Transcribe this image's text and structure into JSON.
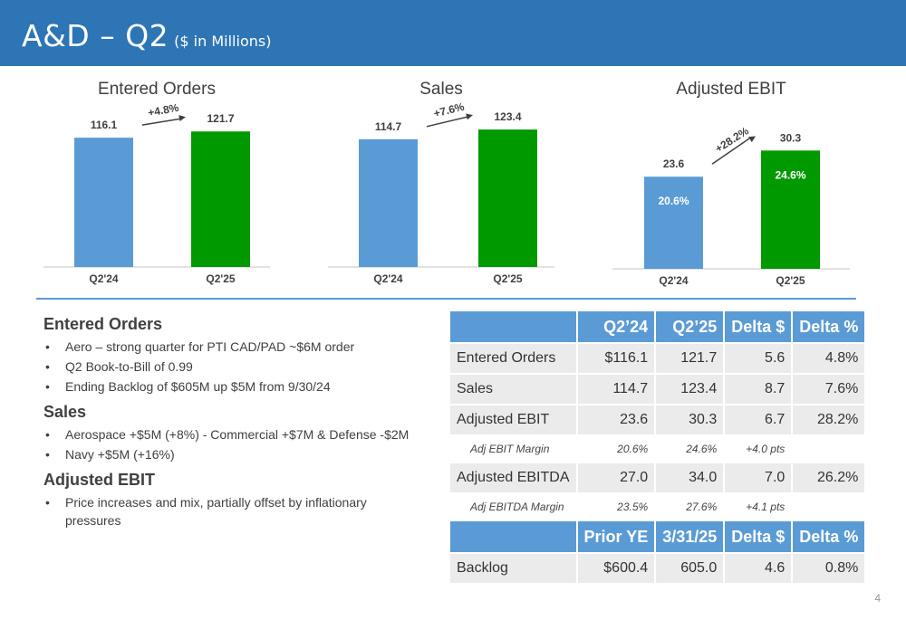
{
  "header": {
    "title": "A&D – Q2",
    "subtitle": "($ in Millions)"
  },
  "colors": {
    "header_bg": "#2e75b6",
    "q24_bar": "#5b9bd5",
    "q25_bar": "#009900",
    "axis": "#d9d9d9",
    "divider": "#5b9bd5",
    "table_header": "#5b9bd5",
    "table_row": "#ebebeb"
  },
  "chart_data": [
    {
      "type": "bar",
      "title": "Entered Orders",
      "categories": [
        "Q2'24",
        "Q2'25"
      ],
      "values": [
        116.1,
        121.7
      ],
      "data_labels": [
        "116.1",
        "121.7"
      ],
      "change_label": "+4.8%",
      "ylim": [
        0,
        130
      ]
    },
    {
      "type": "bar",
      "title": "Sales",
      "categories": [
        "Q2'24",
        "Q2'25"
      ],
      "values": [
        114.7,
        123.4
      ],
      "data_labels": [
        "114.7",
        "123.4"
      ],
      "change_label": "+7.6%",
      "ylim": [
        0,
        130
      ]
    },
    {
      "type": "bar",
      "title": "Adjusted EBIT",
      "categories": [
        "Q2'24",
        "Q2'25"
      ],
      "values": [
        23.6,
        30.3
      ],
      "data_labels": [
        "23.6",
        "30.3"
      ],
      "inner_labels": [
        "20.6%",
        "24.6%"
      ],
      "change_label": "+28.2%",
      "ylim": [
        0,
        32
      ]
    }
  ],
  "notes": [
    {
      "heading": "Entered Orders",
      "bullets": [
        "Aero – strong quarter for PTI CAD/PAD ~$6M order",
        "Q2 Book-to-Bill of 0.99",
        "Ending Backlog of $605M up $5M from 9/30/24"
      ]
    },
    {
      "heading": "Sales",
      "bullets": [
        "Aerospace +$5M (+8%) - Commercial +$7M & Defense -$2M",
        "Navy +$5M (+16%)"
      ]
    },
    {
      "heading": "Adjusted EBIT",
      "bullets": [
        "Price increases and mix, partially offset by inflationary pressures"
      ]
    }
  ],
  "table": {
    "header1": [
      "Q2’24",
      "Q2’25",
      "Delta $",
      "Delta %"
    ],
    "rows": [
      {
        "label": "Entered Orders",
        "values": [
          "$116.1",
          "121.7",
          "5.6",
          "4.8%"
        ]
      },
      {
        "label": "Sales",
        "values": [
          "114.7",
          "123.4",
          "8.7",
          "7.6%"
        ]
      },
      {
        "label": "Adjusted EBIT",
        "values": [
          "23.6",
          "30.3",
          "6.7",
          "28.2%"
        ]
      },
      {
        "label": "Adj EBIT Margin",
        "values": [
          "20.6%",
          "24.6%",
          "+4.0 pts",
          ""
        ],
        "sub": true
      },
      {
        "label": "Adjusted EBITDA",
        "values": [
          "27.0",
          "34.0",
          "7.0",
          "26.2%"
        ]
      },
      {
        "label": "Adj EBITDA Margin",
        "values": [
          "23.5%",
          "27.6%",
          "+4.1 pts",
          ""
        ],
        "sub": true
      }
    ],
    "header2": [
      "Prior YE",
      "3/31/25",
      "Delta $",
      "Delta %"
    ],
    "rows2": [
      {
        "label": "Backlog",
        "values": [
          "$600.4",
          "605.0",
          "4.6",
          "0.8%"
        ]
      }
    ]
  },
  "page_number": "4"
}
